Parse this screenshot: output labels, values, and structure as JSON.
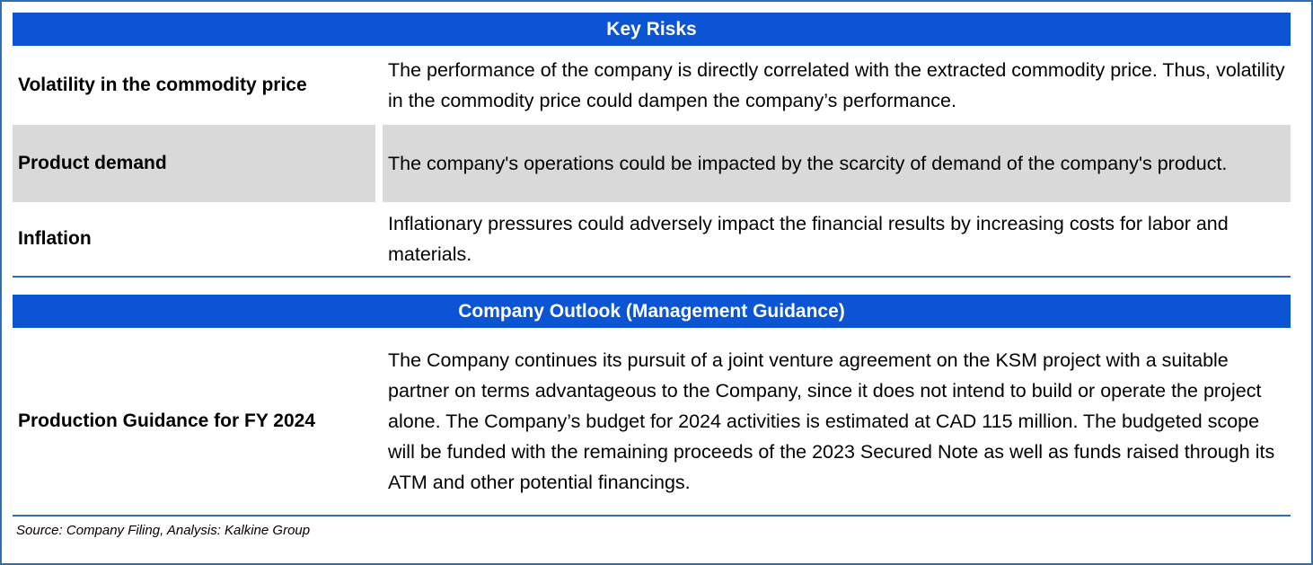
{
  "key_risks": {
    "header": "Key Risks",
    "rows": [
      {
        "label": "Volatility in the commodity price",
        "text": "The performance of the company is directly correlated with the extracted commodity price. Thus, volatility in the commodity price could dampen the company’s performance."
      },
      {
        "label": "Product demand",
        "text": "The company's operations could be impacted by the scarcity of demand of the company's product."
      },
      {
        "label": "Inflation",
        "text": "Inflationary pressures could adversely impact the financial results by increasing costs for labor and materials."
      }
    ]
  },
  "outlook": {
    "header": "Company Outlook (Management Guidance)",
    "rows": [
      {
        "label": "Production Guidance for  FY 2024",
        "text": "The Company continues its pursuit of a joint venture agreement on the KSM project with a suitable partner on terms advantageous to the Company, since it does not intend to build or operate the project alone. The Company’s budget for 2024 activities is estimated at CAD 115 million. The budgeted scope will be funded with the remaining proceeds of the 2023 Secured Note as well as funds raised through its ATM and other potential financings."
      }
    ]
  },
  "source": "Source: Company Filing, Analysis: Kalkine Group",
  "colors": {
    "header_band": "#0b55d4",
    "shaded_row": "#d9d9d9",
    "rule_and_frame": "#2f6db5"
  }
}
